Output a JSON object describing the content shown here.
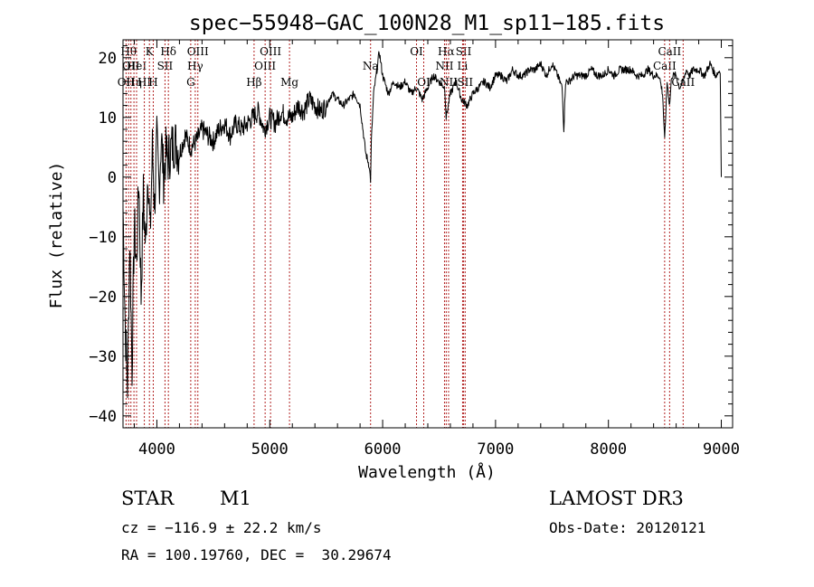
{
  "chart_data": {
    "type": "line",
    "title": "spec−55948−GAC_100N28_M1_sp11−185.fits",
    "xlabel": "Wavelength (Å)",
    "ylabel": "Flux (relative)",
    "xlim": [
      3700,
      9100
    ],
    "ylim": [
      -42,
      23
    ],
    "x_ticks": [
      {
        "value": 4000,
        "label": "4000"
      },
      {
        "value": 5000,
        "label": "5000"
      },
      {
        "value": 6000,
        "label": "6000"
      },
      {
        "value": 7000,
        "label": "7000"
      },
      {
        "value": 8000,
        "label": "8000"
      },
      {
        "value": 9000,
        "label": "9000"
      }
    ],
    "y_ticks": [
      {
        "value": 20,
        "label": "20"
      },
      {
        "value": 10,
        "label": "10"
      },
      {
        "value": 0,
        "label": "0"
      },
      {
        "value": -10,
        "label": "−10"
      },
      {
        "value": -20,
        "label": "−20"
      },
      {
        "value": -30,
        "label": "−30"
      },
      {
        "value": -40,
        "label": "−40"
      }
    ],
    "series": [
      {
        "name": "flux",
        "x": [
          3700,
          3720,
          3740,
          3760,
          3780,
          3800,
          3820,
          3840,
          3860,
          3880,
          3900,
          3920,
          3940,
          3960,
          3980,
          4000,
          4020,
          4040,
          4060,
          4080,
          4100,
          4130,
          4160,
          4200,
          4250,
          4300,
          4350,
          4400,
          4450,
          4500,
          4550,
          4600,
          4650,
          4700,
          4750,
          4800,
          4850,
          4900,
          4950,
          5000,
          5050,
          5100,
          5150,
          5200,
          5250,
          5300,
          5350,
          5400,
          5450,
          5500,
          5550,
          5600,
          5650,
          5700,
          5750,
          5800,
          5850,
          5880,
          5893,
          5900,
          5920,
          5950,
          5970,
          6000,
          6050,
          6100,
          6150,
          6200,
          6250,
          6300,
          6350,
          6400,
          6450,
          6500,
          6550,
          6563,
          6600,
          6650,
          6700,
          6750,
          6800,
          6850,
          6900,
          6950,
          7000,
          7050,
          7100,
          7150,
          7200,
          7250,
          7300,
          7350,
          7400,
          7450,
          7500,
          7550,
          7590,
          7605,
          7620,
          7650,
          7700,
          7750,
          7800,
          7850,
          7900,
          7950,
          8000,
          8050,
          8100,
          8150,
          8200,
          8250,
          8300,
          8350,
          8400,
          8450,
          8480,
          8498,
          8520,
          8542,
          8560,
          8600,
          8630,
          8662,
          8690,
          8720,
          8750,
          8800,
          8850,
          8900,
          8950,
          8990,
          9000
        ],
        "y": [
          -5,
          -25,
          -35,
          -10,
          -32,
          -8,
          -15,
          0,
          -20,
          -3,
          -12,
          2,
          -10,
          5,
          -5,
          6,
          -2,
          7,
          0,
          4,
          3,
          5,
          6,
          4,
          7,
          5,
          6,
          8,
          7,
          6,
          8,
          9,
          7,
          9,
          8,
          9,
          10,
          11,
          8,
          10,
          9,
          11,
          10,
          10,
          12,
          11,
          13,
          12,
          11,
          12,
          14,
          13,
          12,
          13,
          14,
          12,
          4,
          2,
          -0.5,
          6,
          14,
          18,
          21,
          17,
          14,
          16,
          15,
          16,
          14,
          15,
          13,
          15,
          17,
          16,
          15,
          10,
          14,
          16,
          13,
          12,
          14,
          15,
          16,
          15,
          17,
          17,
          16,
          18,
          17,
          17,
          18,
          18,
          19,
          17,
          19,
          17,
          15,
          8,
          16,
          16,
          17,
          17,
          17,
          18,
          17,
          17,
          18,
          17,
          18,
          18,
          18,
          17,
          17,
          18,
          17,
          17,
          14,
          6,
          16,
          12,
          17,
          17,
          15,
          16,
          18,
          17,
          18,
          18,
          17,
          19,
          17,
          18,
          0
        ]
      }
    ],
    "lines": [
      {
        "wavelength": 3727,
        "label": "OII",
        "row": 3
      },
      {
        "wavelength": 3750,
        "label": "Hθ",
        "row": 1
      },
      {
        "wavelength": 3770,
        "label": "OII",
        "row": 2
      },
      {
        "wavelength": 3797,
        "label": "Hη",
        "row": 3
      },
      {
        "wavelength": 3820,
        "label": "HeI",
        "row": 2
      },
      {
        "wavelength": 3889,
        "label": "HI",
        "row": 3
      },
      {
        "wavelength": 3934,
        "label": "K",
        "row": 1
      },
      {
        "wavelength": 3968,
        "label": "H",
        "row": 3
      },
      {
        "wavelength": 4072,
        "label": "SII",
        "row": 2
      },
      {
        "wavelength": 4102,
        "label": "Hδ",
        "row": 1
      },
      {
        "wavelength": 4300,
        "label": "G",
        "row": 3
      },
      {
        "wavelength": 4340,
        "label": "Hγ",
        "row": 2
      },
      {
        "wavelength": 4363,
        "label": "OIII",
        "row": 1
      },
      {
        "wavelength": 4861,
        "label": "Hβ",
        "row": 3
      },
      {
        "wavelength": 4959,
        "label": "OIII",
        "row": 2
      },
      {
        "wavelength": 5007,
        "label": "OIII",
        "row": 1
      },
      {
        "wavelength": 5175,
        "label": "Mg",
        "row": 3
      },
      {
        "wavelength": 5893,
        "label": "Na",
        "row": 2
      },
      {
        "wavelength": 6300,
        "label": "OI",
        "row": 1
      },
      {
        "wavelength": 6364,
        "label": "OI",
        "row": 3
      },
      {
        "wavelength": 6548,
        "label": "NII",
        "row": 2
      },
      {
        "wavelength": 6563,
        "label": "Hα",
        "row": 1
      },
      {
        "wavelength": 6584,
        "label": "NII",
        "row": 3
      },
      {
        "wavelength": 6708,
        "label": "Li",
        "row": 2
      },
      {
        "wavelength": 6717,
        "label": "SII",
        "row": 1
      },
      {
        "wavelength": 6731,
        "label": "SII",
        "row": 3
      },
      {
        "wavelength": 8498,
        "label": "CaII",
        "row": 2
      },
      {
        "wavelength": 8542,
        "label": "CaII",
        "row": 1
      },
      {
        "wavelength": 8662,
        "label": "CaII",
        "row": 3
      }
    ]
  },
  "info": {
    "class": "STAR",
    "subclass": "M1",
    "survey": "LAMOST DR3",
    "velocity": "cz = −116.9 ± 22.2 km/s",
    "obs_date": "Obs-Date: 20120121",
    "coords": "RA = 100.19760, DEC =  30.29674"
  }
}
